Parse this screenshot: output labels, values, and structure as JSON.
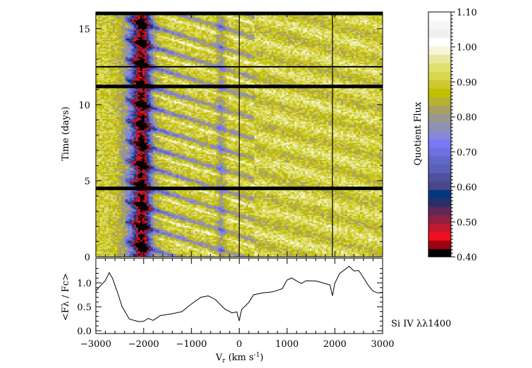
{
  "chart_data": [
    {
      "type": "heatmap",
      "xlabel": "",
      "ylabel": "Time (days)",
      "xlim": [
        -3000,
        3000
      ],
      "ylim": [
        0,
        16.1
      ],
      "yticks": [
        "0",
        "5",
        "10",
        "15"
      ],
      "gap_lines_days": [
        4.5,
        11.2,
        12.5,
        16.0
      ],
      "reference_lines_velocity": [
        0,
        1950
      ],
      "colorbar": {
        "label": "Quotient Flux",
        "range": [
          0.4,
          1.1
        ],
        "ticks": [
          "0.40",
          "0.50",
          "0.60",
          "0.70",
          "0.80",
          "0.90",
          "1.00",
          "1.10"
        ],
        "colors": [
          "#000000",
          "#a00010",
          "#f01020",
          "#c01830",
          "#902040",
          "#602858",
          "#283068",
          "#003880",
          "#484888",
          "#5050a0",
          "#5860b8",
          "#6068c8",
          "#7070e0",
          "#7878f8",
          "#8888d8",
          "#9090b0",
          "#989890",
          "#a8a060",
          "#b8b030",
          "#c0c000",
          "#d0c830",
          "#d8d850",
          "#e0e070",
          "#e8e8a0",
          "#f6f6d8",
          "#ffffff",
          "#f0f0f0",
          "#f6f6f6",
          "#ffffff"
        ]
      }
    },
    {
      "type": "line",
      "xlabel": "V",
      "xlabel_sub": "r",
      "xlabel_unit": " (km s",
      "xlabel_exp": "-1",
      "xlabel_close": ")",
      "ylabel": "<Fλ / Fc>",
      "xlim": [
        -3000,
        3000
      ],
      "ylim": [
        0,
        1.4
      ],
      "xticks": [
        "−3000",
        "−2000",
        "−1000",
        "0",
        "1000",
        "2000",
        "3000"
      ],
      "yticks": [
        "0.0",
        "0.5",
        "1.0"
      ],
      "annotation": "Si IV λλ1400",
      "x": [
        -3000,
        -2900,
        -2800,
        -2720,
        -2650,
        -2550,
        -2450,
        -2300,
        -2100,
        -2000,
        -1900,
        -1800,
        -1650,
        -1400,
        -1200,
        -1000,
        -800,
        -650,
        -500,
        -300,
        -150,
        -50,
        0,
        50,
        200,
        300,
        500,
        700,
        900,
        1000,
        1100,
        1200,
        1300,
        1400,
        1600,
        1800,
        1900,
        1950,
        2000,
        2100,
        2300,
        2400,
        2500,
        2600,
        2700,
        2800,
        2900,
        3000
      ],
      "y": [
        0.82,
        0.95,
        1.05,
        1.22,
        1.1,
        0.8,
        0.5,
        0.25,
        0.2,
        0.2,
        0.25,
        0.22,
        0.32,
        0.35,
        0.4,
        0.55,
        0.7,
        0.72,
        0.65,
        0.45,
        0.38,
        0.4,
        0.2,
        0.45,
        0.6,
        0.75,
        0.8,
        0.82,
        0.88,
        1.05,
        1.1,
        1.05,
        0.98,
        1.05,
        1.05,
        0.98,
        0.95,
        0.72,
        1.0,
        1.2,
        1.35,
        1.25,
        1.25,
        1.1,
        0.95,
        0.82,
        0.8,
        0.8
      ]
    }
  ]
}
